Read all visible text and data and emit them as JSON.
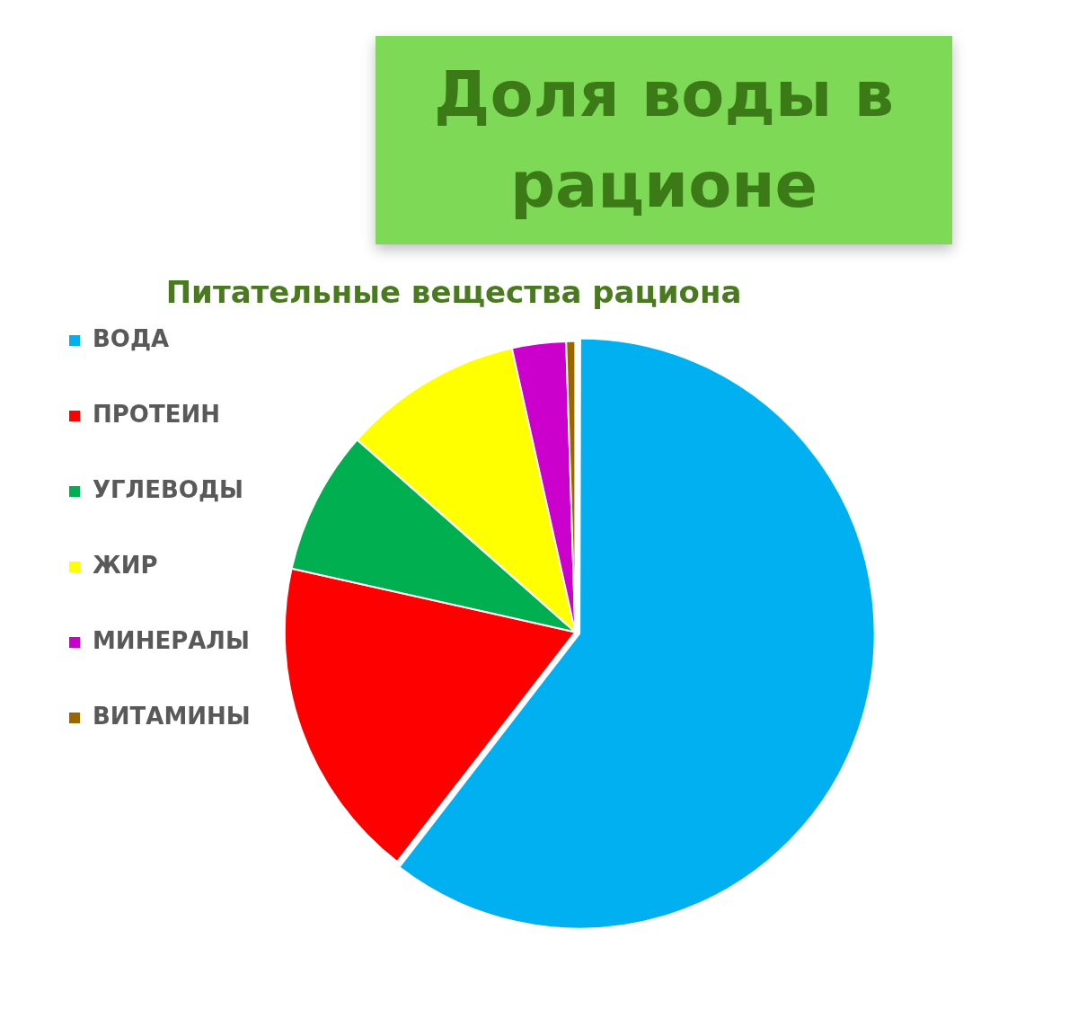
{
  "chart_data": {
    "type": "pie",
    "title": "Доля воды в рационе",
    "subtitle": "Питательные вещества рациона",
    "categories": [
      "ВОДА",
      "ПРОТЕИН",
      "УГЛЕВОДЫ",
      "ЖИР",
      "МИНЕРАЛЫ",
      "ВИТАМИНЫ"
    ],
    "values": [
      60.5,
      18,
      8,
      10,
      3,
      0.5
    ],
    "colors": [
      "#00b0f0",
      "#ff0000",
      "#00b050",
      "#ffff00",
      "#cc00cc",
      "#996600"
    ],
    "legend": "left"
  }
}
